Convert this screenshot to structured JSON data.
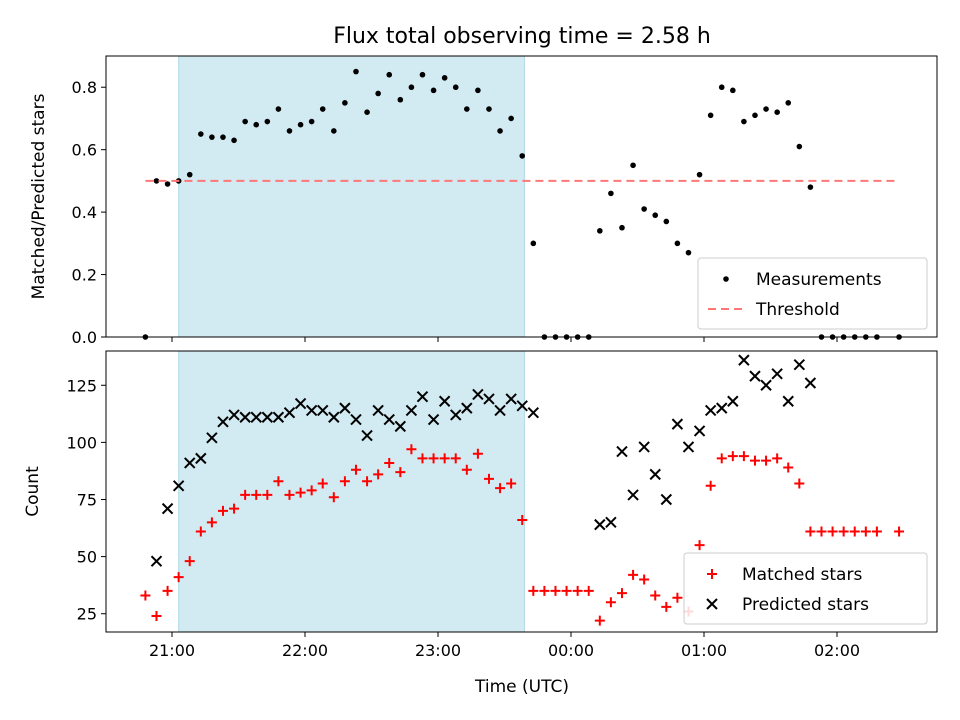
{
  "title": "Flux total observing time = 2.58 h",
  "xlabel": "Time (UTC)",
  "x_ticks": [
    "21:00",
    "22:00",
    "23:00",
    "00:00",
    "01:00",
    "02:00"
  ],
  "shaded_region": {
    "start": "21:03",
    "end": "23:39",
    "color": "#add8e6"
  },
  "chart_data": [
    {
      "type": "scatter",
      "ylabel": "Matched/Predicted stars",
      "ylim": [
        0,
        0.9
      ],
      "yticks": [
        "0.0",
        "0.2",
        "0.4",
        "0.6",
        "0.8"
      ],
      "legend_position": "lower-right",
      "series": [
        {
          "name": "Measurements",
          "marker": "dot",
          "color": "#000000",
          "x": [
            "20:48",
            "20:53",
            "20:58",
            "21:03",
            "21:08",
            "21:13",
            "21:18",
            "21:23",
            "21:28",
            "21:33",
            "21:38",
            "21:43",
            "21:48",
            "21:53",
            "21:58",
            "22:03",
            "22:08",
            "22:13",
            "22:18",
            "22:23",
            "22:28",
            "22:33",
            "22:38",
            "22:43",
            "22:48",
            "22:53",
            "22:58",
            "23:03",
            "23:08",
            "23:13",
            "23:18",
            "23:23",
            "23:28",
            "23:33",
            "23:38",
            "23:43",
            "23:48",
            "23:53",
            "23:58",
            "00:03",
            "00:08",
            "00:13",
            "00:18",
            "00:23",
            "00:28",
            "00:33",
            "00:38",
            "00:43",
            "00:48",
            "00:53",
            "00:58",
            "01:03",
            "01:08",
            "01:13",
            "01:18",
            "01:23",
            "01:28",
            "01:33",
            "01:38",
            "01:43",
            "01:48",
            "01:53",
            "01:58",
            "02:03",
            "02:08",
            "02:13",
            "02:18",
            "02:28"
          ],
          "y": [
            0.0,
            0.5,
            0.49,
            0.5,
            0.52,
            0.65,
            0.64,
            0.64,
            0.63,
            0.69,
            0.68,
            0.69,
            0.73,
            0.66,
            0.68,
            0.69,
            0.73,
            0.66,
            0.75,
            0.85,
            0.72,
            0.78,
            0.84,
            0.76,
            0.8,
            0.84,
            0.79,
            0.83,
            0.8,
            0.73,
            0.79,
            0.73,
            0.66,
            0.7,
            0.58,
            0.3,
            0.0,
            0.0,
            0.0,
            0.0,
            0.0,
            0.34,
            0.46,
            0.35,
            0.55,
            0.41,
            0.39,
            0.37,
            0.3,
            0.27,
            0.52,
            0.71,
            0.8,
            0.79,
            0.69,
            0.71,
            0.73,
            0.72,
            0.75,
            0.61,
            0.48,
            0.0,
            0.0,
            0.0,
            0.0,
            0.0,
            0.0,
            0.0
          ]
        },
        {
          "name": "Threshold",
          "style": "dashed",
          "color": "#ff7777",
          "x": [
            "20:48",
            "02:28"
          ],
          "y": [
            0.5,
            0.5
          ]
        }
      ]
    },
    {
      "type": "scatter",
      "ylabel": "Count",
      "ylim": [
        17,
        140
      ],
      "yticks": [
        "25",
        "50",
        "75",
        "100",
        "125"
      ],
      "legend_position": "lower-right",
      "series": [
        {
          "name": "Matched stars",
          "marker": "plus",
          "color": "#ff0000",
          "x": [
            "20:48",
            "20:53",
            "20:58",
            "21:03",
            "21:08",
            "21:13",
            "21:18",
            "21:23",
            "21:28",
            "21:33",
            "21:38",
            "21:43",
            "21:48",
            "21:53",
            "21:58",
            "22:03",
            "22:08",
            "22:13",
            "22:18",
            "22:23",
            "22:28",
            "22:33",
            "22:38",
            "22:43",
            "22:48",
            "22:53",
            "22:58",
            "23:03",
            "23:08",
            "23:13",
            "23:18",
            "23:23",
            "23:28",
            "23:33",
            "23:38",
            "23:43",
            "23:48",
            "23:53",
            "23:58",
            "00:03",
            "00:08",
            "00:13",
            "00:18",
            "00:23",
            "00:28",
            "00:33",
            "00:38",
            "00:43",
            "00:48",
            "00:53",
            "00:58",
            "01:03",
            "01:08",
            "01:13",
            "01:18",
            "01:23",
            "01:28",
            "01:33",
            "01:38",
            "01:43",
            "01:48",
            "01:53",
            "01:58",
            "02:03",
            "02:08",
            "02:13",
            "02:18",
            "02:28"
          ],
          "y": [
            33,
            24,
            35,
            41,
            48,
            61,
            65,
            70,
            71,
            77,
            77,
            77,
            83,
            77,
            78,
            79,
            82,
            76,
            83,
            88,
            83,
            86,
            91,
            87,
            97,
            93,
            93,
            93,
            93,
            88,
            95,
            84,
            80,
            82,
            66,
            35,
            35,
            35,
            35,
            35,
            35,
            22,
            30,
            34,
            42,
            40,
            33,
            28,
            32,
            26,
            55,
            81,
            93,
            94,
            94,
            92,
            92,
            93,
            89,
            82,
            61,
            61,
            61,
            61,
            61,
            61,
            61,
            61
          ]
        },
        {
          "name": "Predicted stars",
          "marker": "x",
          "color": "#000000",
          "x": [
            "20:53",
            "20:58",
            "21:03",
            "21:08",
            "21:13",
            "21:18",
            "21:23",
            "21:28",
            "21:33",
            "21:38",
            "21:43",
            "21:48",
            "21:53",
            "21:58",
            "22:03",
            "22:08",
            "22:13",
            "22:18",
            "22:23",
            "22:28",
            "22:33",
            "22:38",
            "22:43",
            "22:48",
            "22:53",
            "22:58",
            "23:03",
            "23:08",
            "23:13",
            "23:18",
            "23:23",
            "23:28",
            "23:33",
            "23:38",
            "23:43",
            "00:13",
            "00:18",
            "00:23",
            "00:28",
            "00:33",
            "00:38",
            "00:43",
            "00:48",
            "00:53",
            "00:58",
            "01:03",
            "01:08",
            "01:13",
            "01:18",
            "01:23",
            "01:28",
            "01:33",
            "01:38",
            "01:43",
            "01:48"
          ],
          "y": [
            48,
            71,
            81,
            91,
            93,
            102,
            109,
            112,
            111,
            111,
            111,
            111,
            113,
            117,
            114,
            114,
            111,
            115,
            110,
            103,
            114,
            110,
            107,
            114,
            120,
            110,
            118,
            112,
            115,
            121,
            119,
            114,
            119,
            116,
            113,
            64,
            65,
            96,
            77,
            98,
            86,
            75,
            108,
            98,
            105,
            114,
            115,
            118,
            136,
            129,
            125,
            130,
            118,
            134,
            126
          ]
        }
      ]
    }
  ]
}
